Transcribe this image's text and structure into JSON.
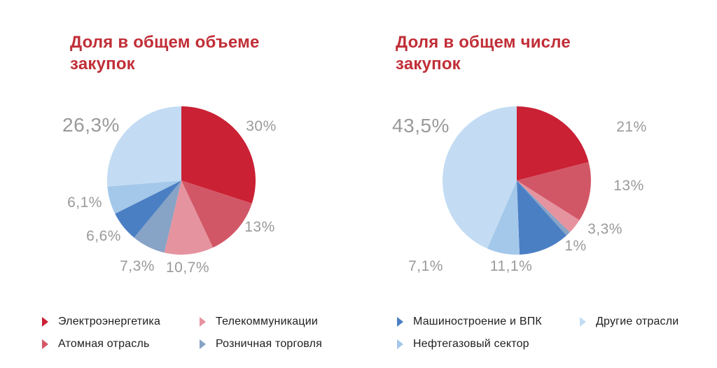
{
  "colors": {
    "title": "#C12E37",
    "value_label": "#9A9A9A",
    "legend_text": "#1E1E1E",
    "background": "#FFFFFF"
  },
  "chart_data": [
    {
      "type": "pie",
      "title": "Доля в общем объеме закупок",
      "categories": [
        "Электроэнергетика",
        "Атомная отрасль",
        "Телекоммуникации",
        "Розничная торговля",
        "Машиностроение и ВПК",
        "Нефтегазовый сектор",
        "Другие отрасли"
      ],
      "values": [
        30,
        13,
        10.7,
        7.3,
        6.6,
        6.1,
        26.3
      ],
      "labels": [
        "30%",
        "13%",
        "10,7%",
        "7,3%",
        "6,6%",
        "6,1%",
        "26,3%"
      ],
      "colors": [
        "#CA2134",
        "#D25766",
        "#E5939F",
        "#87A3C6",
        "#4B7FC4",
        "#A4C8EA",
        "#C3DCF3"
      ],
      "start_angle_deg": 0,
      "direction": "clockwise",
      "legend_position": "bottom"
    },
    {
      "type": "pie",
      "title": "Доля в общем числе закупок",
      "categories": [
        "Электроэнергетика",
        "Атомная отрасль",
        "Телекоммуникации",
        "Розничная торговля",
        "Машиностроение и ВПК",
        "Нефтегазовый сектор",
        "Другие отрасли"
      ],
      "values": [
        21,
        13,
        3.3,
        1,
        11.1,
        7.1,
        43.5
      ],
      "labels": [
        "21%",
        "13%",
        "3,3%",
        "1%",
        "11,1%",
        "7,1%",
        "43,5%"
      ],
      "colors": [
        "#CA2134",
        "#D25766",
        "#E5939F",
        "#87A3C6",
        "#4B7FC4",
        "#A4C8EA",
        "#C3DCF3"
      ],
      "start_angle_deg": 0,
      "direction": "clockwise",
      "legend_position": "bottom"
    }
  ],
  "legend": {
    "items": [
      {
        "label": "Электроэнергетика",
        "color": "#CA2134"
      },
      {
        "label": "Атомная отрасль",
        "color": "#D25766"
      },
      {
        "label": "Телекоммуникации",
        "color": "#E5939F"
      },
      {
        "label": "Розничная торговля",
        "color": "#87A3C6"
      },
      {
        "label": "Машиностроение и ВПК",
        "color": "#4B7FC4"
      },
      {
        "label": "Нефтегазовый сектор",
        "color": "#A4C8EA"
      },
      {
        "label": "Другие отрасли",
        "color": "#C3DCF3"
      }
    ]
  }
}
